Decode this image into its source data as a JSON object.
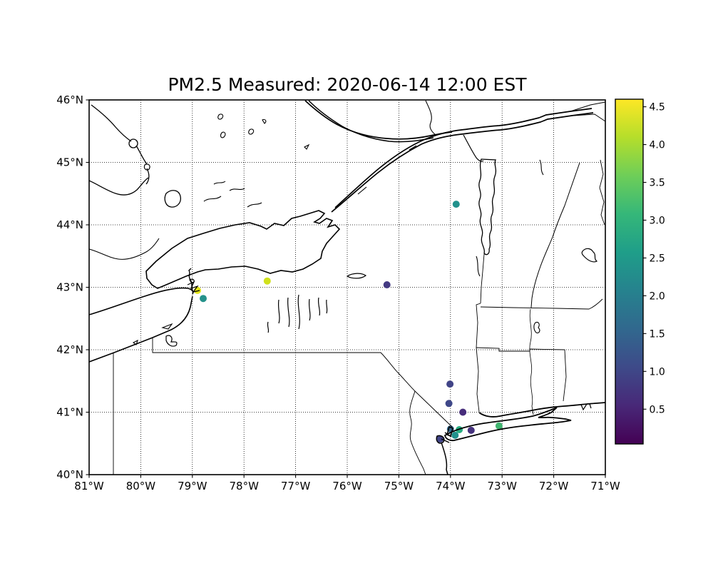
{
  "figure": {
    "title": "PM2.5 Measured: 2020-06-14 12:00 EST",
    "background_color": "#ffffff"
  },
  "axes": {
    "xticks": [
      {
        "lon": -81,
        "label": "81°W"
      },
      {
        "lon": -80,
        "label": "80°W"
      },
      {
        "lon": -79,
        "label": "79°W"
      },
      {
        "lon": -78,
        "label": "78°W"
      },
      {
        "lon": -77,
        "label": "77°W"
      },
      {
        "lon": -76,
        "label": "76°W"
      },
      {
        "lon": -75,
        "label": "75°W"
      },
      {
        "lon": -74,
        "label": "74°W"
      },
      {
        "lon": -73,
        "label": "73°W"
      },
      {
        "lon": -72,
        "label": "72°W"
      },
      {
        "lon": -71,
        "label": "71°W"
      }
    ],
    "yticks": [
      {
        "lat": 46,
        "label": "46°N"
      },
      {
        "lat": 45,
        "label": "45°N"
      },
      {
        "lat": 44,
        "label": "44°N"
      },
      {
        "lat": 43,
        "label": "43°N"
      },
      {
        "lat": 42,
        "label": "42°N"
      },
      {
        "lat": 41,
        "label": "41°N"
      },
      {
        "lat": 40,
        "label": "40°N"
      }
    ],
    "grid_style": "dotted"
  },
  "colorbar": {
    "colormap_name": "viridis",
    "vmin": 0.04,
    "vmax": 4.6,
    "ticks": [
      {
        "value": 4.5,
        "label": "4.5"
      },
      {
        "value": 4.0,
        "label": "4.0"
      },
      {
        "value": 3.5,
        "label": "3.5"
      },
      {
        "value": 3.0,
        "label": "3.0"
      },
      {
        "value": 2.5,
        "label": "2.5"
      },
      {
        "value": 2.0,
        "label": "2.0"
      },
      {
        "value": 1.5,
        "label": "1.5"
      },
      {
        "value": 1.0,
        "label": "1.0"
      },
      {
        "value": 0.5,
        "label": "0.5"
      }
    ],
    "colors_bottom_to_top": [
      "#440154",
      "#482878",
      "#3e4a89",
      "#31688e",
      "#26828e",
      "#1f9e89",
      "#35b779",
      "#6ece58",
      "#b5de2b",
      "#fde725"
    ]
  },
  "chart_data": {
    "type": "scatter",
    "title": "PM2.5 Measured: 2020-06-14 12:00 EST",
    "xlabel": "",
    "ylabel": "",
    "xlim": [
      -81,
      -71
    ],
    "ylim": [
      40,
      46
    ],
    "legend_position": "right-colorbar",
    "grid": true,
    "points": [
      {
        "lon": -73.89,
        "lat": 44.33,
        "value": 2.3,
        "color": "#21918c"
      },
      {
        "lon": -78.9,
        "lat": 42.95,
        "value": 4.5,
        "color": "#e2e418"
      },
      {
        "lon": -78.79,
        "lat": 42.82,
        "value": 2.3,
        "color": "#25928b"
      },
      {
        "lon": -77.55,
        "lat": 43.1,
        "value": 4.2,
        "color": "#d0e11c"
      },
      {
        "lon": -75.23,
        "lat": 43.04,
        "value": 0.9,
        "color": "#443a83"
      },
      {
        "lon": -74.01,
        "lat": 41.45,
        "value": 1.0,
        "color": "#414487"
      },
      {
        "lon": -74.03,
        "lat": 41.14,
        "value": 1.0,
        "color": "#3f4889"
      },
      {
        "lon": -73.76,
        "lat": 41.0,
        "value": 0.55,
        "color": "#472d7b"
      },
      {
        "lon": -74.0,
        "lat": 40.73,
        "value": 1.7,
        "color": "#31688e"
      },
      {
        "lon": -73.83,
        "lat": 40.72,
        "value": 2.8,
        "color": "#27ad81"
      },
      {
        "lon": -73.6,
        "lat": 40.71,
        "value": 0.6,
        "color": "#46327e"
      },
      {
        "lon": -73.91,
        "lat": 40.63,
        "value": 2.3,
        "color": "#21918c"
      },
      {
        "lon": -74.2,
        "lat": 40.57,
        "value": 1.0,
        "color": "#414487"
      },
      {
        "lon": -73.06,
        "lat": 40.78,
        "value": 3.1,
        "color": "#40b46f"
      }
    ]
  }
}
